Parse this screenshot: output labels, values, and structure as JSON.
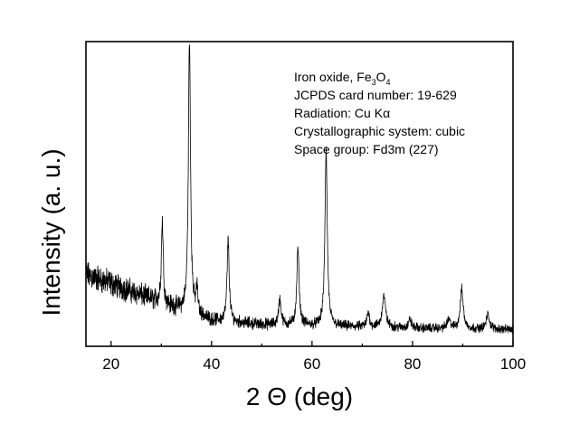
{
  "chart_data": {
    "type": "line",
    "title": "",
    "xlabel": "2 Θ (deg)",
    "ylabel": "Intensity (a. u.)",
    "xlim": [
      15,
      100
    ],
    "ylim": [
      0,
      100
    ],
    "x_ticks": [
      20,
      40,
      60,
      80,
      100
    ],
    "x_tick_labels": [
      "20",
      "40",
      "60",
      "80",
      "100"
    ],
    "y_ticks_shown": false,
    "grid": false,
    "legend": null,
    "annotation": {
      "line1_prefix": "Iron oxide, Fe",
      "line1_sub1": "3",
      "line1_mid": "O",
      "line1_sub2": "4",
      "line2": "JCPDS card number: 19-629",
      "line3_prefix": "Radiation: Cu K",
      "line3_symbol": "α",
      "line4": "Crystallographic system: cubic",
      "line5": "Space group: Fd3m (227)"
    },
    "series": [
      {
        "baseline": [
          [
            15,
            21
          ],
          [
            20,
            18
          ],
          [
            25,
            14.5
          ],
          [
            30,
            11
          ],
          [
            40,
            5
          ],
          [
            50,
            3.5
          ],
          [
            60,
            3
          ],
          [
            70,
            2.6
          ],
          [
            80,
            2.3
          ],
          [
            90,
            2
          ],
          [
            100,
            1.8
          ]
        ],
        "noise_amplitude": [
          [
            15,
            6
          ],
          [
            20,
            5.5
          ],
          [
            30,
            4.5
          ],
          [
            40,
            2.8
          ],
          [
            60,
            2.2
          ],
          [
            100,
            1.8
          ]
        ],
        "peaks": [
          {
            "x": 30.2,
            "height": 29,
            "fwhm": 0.45
          },
          {
            "x": 35.6,
            "height": 97,
            "fwhm": 0.5
          },
          {
            "x": 37.1,
            "height": 9,
            "fwhm": 0.4
          },
          {
            "x": 43.3,
            "height": 29,
            "fwhm": 0.5
          },
          {
            "x": 53.6,
            "height": 9,
            "fwhm": 0.6
          },
          {
            "x": 57.2,
            "height": 27,
            "fwhm": 0.55
          },
          {
            "x": 62.8,
            "height": 62,
            "fwhm": 0.55
          },
          {
            "x": 71.2,
            "height": 5,
            "fwhm": 0.6
          },
          {
            "x": 74.3,
            "height": 11,
            "fwhm": 0.8
          },
          {
            "x": 79.5,
            "height": 3,
            "fwhm": 0.6
          },
          {
            "x": 87.2,
            "height": 3,
            "fwhm": 0.8
          },
          {
            "x": 89.8,
            "height": 14,
            "fwhm": 0.7
          },
          {
            "x": 95.0,
            "height": 5,
            "fwhm": 0.8
          }
        ]
      }
    ]
  }
}
